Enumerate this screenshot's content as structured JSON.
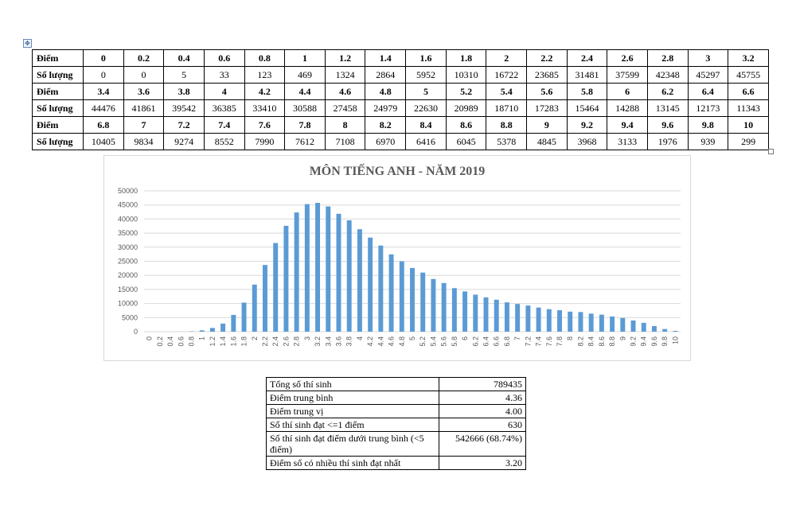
{
  "distribution_table": {
    "score_label": "Điểm",
    "count_label": "Số lượng",
    "rows": [
      {
        "scores": [
          "0",
          "0.2",
          "0.4",
          "0.6",
          "0.8",
          "1",
          "1.2",
          "1.4",
          "1.6",
          "1.8",
          "2",
          "2.2",
          "2.4",
          "2.6",
          "2.8",
          "3",
          "3.2"
        ],
        "counts": [
          "0",
          "0",
          "5",
          "33",
          "123",
          "469",
          "1324",
          "2864",
          "5952",
          "10310",
          "16722",
          "23685",
          "31481",
          "37599",
          "42348",
          "45297",
          "45755"
        ]
      },
      {
        "scores": [
          "3.4",
          "3.6",
          "3.8",
          "4",
          "4.2",
          "4.4",
          "4.6",
          "4.8",
          "5",
          "5.2",
          "5.4",
          "5.6",
          "5.8",
          "6",
          "6.2",
          "6.4",
          "6.6"
        ],
        "counts": [
          "44476",
          "41861",
          "39542",
          "36385",
          "33410",
          "30588",
          "27458",
          "24979",
          "22630",
          "20989",
          "18710",
          "17283",
          "15464",
          "14288",
          "13145",
          "12173",
          "11343"
        ]
      },
      {
        "scores": [
          "6.8",
          "7",
          "7.2",
          "7.4",
          "7.6",
          "7.8",
          "8",
          "8.2",
          "8.4",
          "8.6",
          "8.8",
          "9",
          "9.2",
          "9.4",
          "9.6",
          "9.8",
          "10"
        ],
        "counts": [
          "10405",
          "9834",
          "9274",
          "8552",
          "7990",
          "7612",
          "7108",
          "6970",
          "6416",
          "6045",
          "5378",
          "4845",
          "3968",
          "3133",
          "1976",
          "939",
          "299"
        ]
      }
    ]
  },
  "chart_data": {
    "type": "bar",
    "title": "MÔN TIẾNG ANH - NĂM 2019",
    "xlabel": "",
    "ylabel": "",
    "ylim": [
      0,
      50000
    ],
    "yticks": [
      0,
      5000,
      10000,
      15000,
      20000,
      25000,
      30000,
      35000,
      40000,
      45000,
      50000
    ],
    "grid": true,
    "color": "#5b9bd5",
    "categories": [
      "0",
      "0.2",
      "0.4",
      "0.6",
      "0.8",
      "1",
      "1.2",
      "1.4",
      "1.6",
      "1.8",
      "2",
      "2.2",
      "2.4",
      "2.6",
      "2.8",
      "3",
      "3.2",
      "3.4",
      "3.6",
      "3.8",
      "4",
      "4.2",
      "4.4",
      "4.6",
      "4.8",
      "5",
      "5.2",
      "5.4",
      "5.6",
      "5.8",
      "6",
      "6.2",
      "6.4",
      "6.6",
      "6.8",
      "7",
      "7.2",
      "7.4",
      "7.6",
      "7.8",
      "8",
      "8.2",
      "8.4",
      "8.6",
      "8.8",
      "9",
      "9.2",
      "9.4",
      "9.6",
      "9.8",
      "10"
    ],
    "values": [
      0,
      0,
      5,
      33,
      123,
      469,
      1324,
      2864,
      5952,
      10310,
      16722,
      23685,
      31481,
      37599,
      42348,
      45297,
      45755,
      44476,
      41861,
      39542,
      36385,
      33410,
      30588,
      27458,
      24979,
      22630,
      20989,
      18710,
      17283,
      15464,
      14288,
      13145,
      12173,
      11343,
      10405,
      9834,
      9274,
      8552,
      7990,
      7612,
      7108,
      6970,
      6416,
      6045,
      5378,
      4845,
      3968,
      3133,
      1976,
      939,
      299
    ]
  },
  "stats_table": [
    {
      "label": "Tổng số thí sinh",
      "value": "789435"
    },
    {
      "label": "Điểm trung bình",
      "value": "4.36"
    },
    {
      "label": "Điểm trung vị",
      "value": "4.00"
    },
    {
      "label": "Số thí sinh đạt <=1 điểm",
      "value": "630"
    },
    {
      "label": "Số thí sinh đạt điểm dưới trung bình (<5 điểm)",
      "value": "542666 (68.74%)"
    },
    {
      "label": "Điểm số có nhiều thí sinh đạt nhất",
      "value": "3.20"
    }
  ],
  "icons": {
    "table_move_handle": "move-arrows-icon",
    "table_resize_handle": "resize-square-icon"
  }
}
